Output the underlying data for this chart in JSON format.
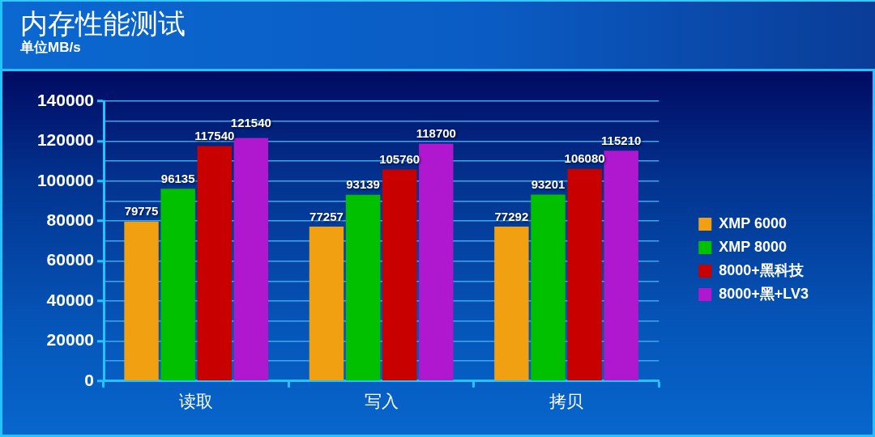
{
  "chart_data": {
    "type": "bar",
    "title": "内存性能测试",
    "subtitle": "单位MB/s",
    "categories": [
      "读取",
      "写入",
      "拷贝"
    ],
    "series": [
      {
        "name": "XMP 6000",
        "color": "#f0a010",
        "values": [
          79775,
          77257,
          77292
        ]
      },
      {
        "name": "XMP 8000",
        "color": "#00c000",
        "values": [
          96135,
          93139,
          93201
        ]
      },
      {
        "name": "8000+黑科技",
        "color": "#c80000",
        "values": [
          117540,
          105760,
          106080
        ]
      },
      {
        "name": "8000+黑+LV3",
        "color": "#b018d0",
        "values": [
          121540,
          118700,
          115210
        ]
      }
    ],
    "ylim": [
      0,
      140000
    ],
    "yticks": [
      0,
      {
        "value": 10000,
        "label": null
      },
      20000,
      {
        "value": 30000,
        "label": null
      },
      40000,
      {
        "value": 50000,
        "label": null
      },
      60000,
      {
        "value": 70000,
        "label": null
      },
      80000,
      {
        "value": 90000,
        "label": null
      },
      100000,
      {
        "value": 110000,
        "label": null
      },
      120000,
      {
        "value": 130000,
        "label": null
      },
      140000
    ],
    "grid": "y",
    "legend": "right",
    "data_labels": true
  }
}
